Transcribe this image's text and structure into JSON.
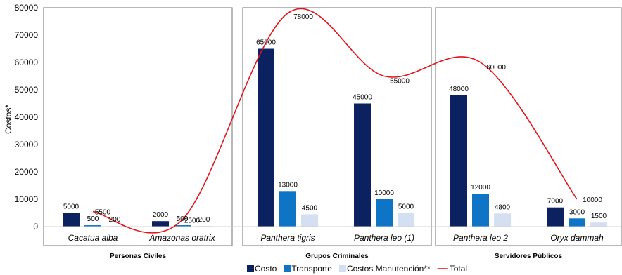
{
  "chart_data": {
    "type": "bar",
    "ylabel": "Costos*",
    "ylim": [
      0,
      80000
    ],
    "yticks": [
      0,
      10000,
      20000,
      30000,
      40000,
      50000,
      60000,
      70000,
      80000
    ],
    "grid": false,
    "legend_position": "bottom",
    "groups": [
      {
        "name": "Personas  Civiles",
        "categories": [
          "Cacatua alba",
          "Amazonas oratrix"
        ]
      },
      {
        "name": "Grupos Criminales",
        "categories": [
          "Panthera tigris",
          "Panthera leo (1)"
        ]
      },
      {
        "name": "Servidores Públicos",
        "categories": [
          "Panthera leo 2",
          "Oryx dammah"
        ]
      }
    ],
    "categories": [
      "Cacatua alba",
      "Amazonas oratrix",
      "Panthera tigris",
      "Panthera leo (1)",
      "Panthera leo 2",
      "Oryx dammah"
    ],
    "series": [
      {
        "name": "Costo",
        "kind": "bar",
        "color": "#0b2160",
        "values": [
          5000,
          2000,
          65000,
          45000,
          48000,
          7000
        ]
      },
      {
        "name": "Transporte",
        "kind": "bar",
        "color": "#0e74c6",
        "values": [
          500,
          500,
          13000,
          10000,
          12000,
          3000
        ]
      },
      {
        "name": "Costos Manutención**",
        "kind": "bar",
        "color": "#d5dff2",
        "values": [
          200,
          200,
          4500,
          5000,
          4800,
          1500
        ]
      },
      {
        "name": "Total",
        "kind": "line",
        "color": "#e4141b",
        "values": [
          5500,
          2500,
          78000,
          55000,
          60000,
          10000
        ]
      }
    ],
    "bar_labels": [
      [
        "5000",
        "2000",
        "65000",
        "45000",
        "48000",
        "7000"
      ],
      [
        "500",
        "500",
        "13000",
        "10000",
        "12000",
        "3000"
      ],
      [
        "200",
        "200",
        "4500",
        "5000",
        "4800",
        "1500"
      ]
    ],
    "total_labels": [
      "5500",
      "2500",
      "78000",
      "55000",
      "60000",
      "10000"
    ]
  }
}
